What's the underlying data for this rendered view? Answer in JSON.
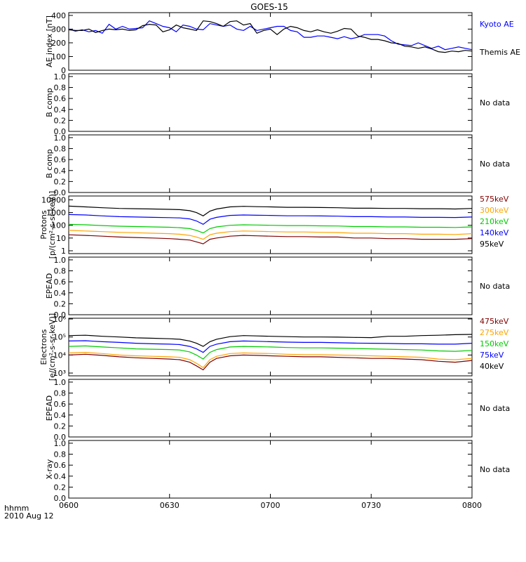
{
  "title": "GOES-15",
  "x_axis": {
    "ticks": [
      "0600",
      "0630",
      "0700",
      "0730",
      "0800"
    ],
    "label": "hhmm",
    "date": "2010 Aug 12",
    "range": [
      0,
      120
    ]
  },
  "colors": {
    "black": "#000000",
    "blue": "#0000ff",
    "green": "#00cc00",
    "orange": "#ffa500",
    "darkred": "#800000"
  },
  "chart_data": [
    {
      "type": "line",
      "ylabel": "AE index [nT]",
      "yticks": [
        "0",
        "100",
        "200",
        "300",
        "400"
      ],
      "ylim": [
        0,
        420
      ],
      "x": [
        0,
        2,
        4,
        6,
        8,
        10,
        12,
        14,
        16,
        18,
        20,
        22,
        24,
        26,
        28,
        30,
        32,
        34,
        36,
        38,
        40,
        42,
        44,
        46,
        48,
        50,
        52,
        54,
        56,
        58,
        60,
        62,
        64,
        66,
        68,
        70,
        72,
        74,
        76,
        78,
        80,
        82,
        84,
        86,
        88,
        90,
        92,
        94,
        96,
        98,
        100,
        102,
        104,
        106,
        108,
        110,
        112,
        114,
        116,
        118,
        120
      ],
      "series": [
        {
          "name": "Kyoto AE",
          "color": "blue",
          "values": [
            300,
            285,
            295,
            280,
            290,
            270,
            335,
            300,
            320,
            300,
            305,
            310,
            360,
            340,
            320,
            310,
            280,
            330,
            320,
            300,
            295,
            340,
            330,
            320,
            330,
            300,
            290,
            320,
            290,
            300,
            310,
            320,
            320,
            290,
            280,
            240,
            240,
            250,
            250,
            240,
            230,
            245,
            230,
            240,
            260,
            260,
            260,
            250,
            215,
            190,
            185,
            180,
            200,
            180,
            160,
            175,
            150,
            160,
            170,
            160,
            150
          ]
        },
        {
          "name": "Themis AE",
          "color": "black",
          "values": [
            295,
            290,
            290,
            300,
            275,
            290,
            300,
            295,
            300,
            290,
            295,
            325,
            335,
            330,
            280,
            295,
            330,
            310,
            300,
            290,
            360,
            355,
            340,
            320,
            355,
            360,
            330,
            340,
            270,
            290,
            300,
            260,
            300,
            320,
            310,
            290,
            280,
            295,
            280,
            270,
            285,
            305,
            300,
            250,
            240,
            225,
            225,
            215,
            200,
            195,
            175,
            170,
            160,
            170,
            155,
            135,
            130,
            140,
            135,
            145,
            140
          ]
        }
      ]
    },
    {
      "type": "line",
      "ylabel": "B comp",
      "yticks": [
        "0.0",
        "0.2",
        "0.4",
        "0.6",
        "0.8",
        "1.0"
      ],
      "ylim": [
        0,
        1.05
      ],
      "note": "No data"
    },
    {
      "type": "line",
      "ylabel": "B comp",
      "yticks": [
        "0.0",
        "0.2",
        "0.4",
        "0.6",
        "0.8",
        "1.0"
      ],
      "ylim": [
        0,
        1.05
      ],
      "note": "No data"
    },
    {
      "type": "line",
      "scale": "log",
      "ylabel": "Protons",
      "ylabel2": "[p/(cm²-s-sr-keV)]",
      "yticks": [
        "1",
        "10",
        "100",
        "1000",
        "10000"
      ],
      "ylim": [
        0.6,
        20000
      ],
      "x": [
        0,
        5,
        10,
        15,
        20,
        25,
        30,
        33,
        36,
        38,
        40,
        42,
        44,
        48,
        52,
        56,
        60,
        65,
        70,
        75,
        80,
        85,
        90,
        95,
        100,
        105,
        110,
        115,
        120
      ],
      "series": [
        {
          "name": "575keV",
          "color": "darkred",
          "values": [
            18,
            16,
            14,
            12,
            11,
            10,
            9,
            8,
            7,
            5,
            3.5,
            8,
            10,
            14,
            16,
            15,
            14,
            13,
            13,
            12,
            12,
            10,
            10,
            9,
            9,
            8,
            8,
            8,
            9
          ]
        },
        {
          "name": "300keV",
          "color": "orange",
          "values": [
            40,
            36,
            32,
            28,
            26,
            24,
            22,
            20,
            16,
            12,
            8,
            18,
            24,
            32,
            36,
            34,
            32,
            30,
            30,
            28,
            27,
            24,
            24,
            22,
            22,
            20,
            20,
            19,
            22
          ]
        },
        {
          "name": "210keV",
          "color": "green",
          "values": [
            120,
            110,
            95,
            85,
            80,
            75,
            70,
            65,
            55,
            40,
            25,
            55,
            75,
            100,
            110,
            105,
            100,
            95,
            95,
            90,
            88,
            80,
            80,
            75,
            75,
            70,
            70,
            68,
            75
          ]
        },
        {
          "name": "140keV",
          "color": "blue",
          "values": [
            700,
            650,
            550,
            480,
            450,
            420,
            400,
            380,
            320,
            220,
            120,
            300,
            420,
            600,
            650,
            620,
            600,
            560,
            560,
            540,
            520,
            480,
            480,
            450,
            450,
            420,
            420,
            410,
            450
          ]
        },
        {
          "name": "95keV",
          "color": "black",
          "values": [
            3200,
            2800,
            2400,
            2100,
            2000,
            1900,
            1800,
            1700,
            1400,
            1000,
            550,
            1300,
            1900,
            2800,
            3100,
            2900,
            2800,
            2600,
            2600,
            2500,
            2400,
            2200,
            2200,
            2100,
            2100,
            2000,
            2000,
            1900,
            2100
          ]
        }
      ]
    },
    {
      "type": "line",
      "ylabel": "EPEAD",
      "yticks": [
        "0.0",
        "0.2",
        "0.4",
        "0.6",
        "0.8",
        "1.0"
      ],
      "ylim": [
        0,
        1.05
      ],
      "note": "No data"
    },
    {
      "type": "line",
      "scale": "log",
      "ylabel": "Electrons",
      "ylabel2": "[e/(cm²-s-sr-keV)]",
      "yticks": [
        "10³",
        "10⁴",
        "10⁵",
        "10⁶"
      ],
      "ylim": [
        700,
        1100000
      ],
      "x": [
        0,
        5,
        10,
        15,
        20,
        25,
        30,
        33,
        36,
        38,
        40,
        42,
        44,
        48,
        52,
        56,
        60,
        65,
        70,
        75,
        80,
        85,
        90,
        95,
        100,
        105,
        110,
        115,
        120
      ],
      "series": [
        {
          "name": "475keV",
          "color": "darkred",
          "values": [
            10000,
            11000,
            9500,
            8000,
            7000,
            6500,
            6000,
            5500,
            4000,
            2500,
            1500,
            4000,
            6500,
            9000,
            10000,
            9500,
            9000,
            8500,
            8000,
            8000,
            7500,
            7000,
            6500,
            6500,
            6000,
            5500,
            4500,
            4000,
            5000
          ]
        },
        {
          "name": "275keV",
          "color": "orange",
          "values": [
            13000,
            14000,
            12000,
            10000,
            9000,
            8500,
            8000,
            7500,
            5500,
            3500,
            2000,
            5500,
            8500,
            12000,
            13000,
            12500,
            12000,
            11000,
            10500,
            10500,
            10000,
            9500,
            9000,
            8500,
            8000,
            7500,
            6000,
            5500,
            6500
          ]
        },
        {
          "name": "150keV",
          "color": "green",
          "values": [
            30000,
            32000,
            28000,
            25000,
            22000,
            21000,
            20000,
            19000,
            15000,
            10000,
            6000,
            14000,
            20000,
            28000,
            30000,
            29000,
            28000,
            26000,
            25000,
            25000,
            24000,
            23000,
            22000,
            21000,
            20000,
            19000,
            17000,
            16000,
            18000
          ]
        },
        {
          "name": "75keV",
          "color": "blue",
          "values": [
            60000,
            62000,
            55000,
            50000,
            45000,
            42000,
            40000,
            38000,
            30000,
            22000,
            14000,
            30000,
            40000,
            55000,
            60000,
            58000,
            55000,
            52000,
            50000,
            50000,
            48000,
            46000,
            45000,
            44000,
            42000,
            42000,
            40000,
            40000,
            45000
          ]
        },
        {
          "name": "40keV",
          "color": "black",
          "values": [
            120000,
            125000,
            110000,
            100000,
            90000,
            85000,
            80000,
            75000,
            60000,
            45000,
            30000,
            55000,
            75000,
            105000,
            120000,
            115000,
            110000,
            105000,
            100000,
            100000,
            98000,
            95000,
            92000,
            110000,
            110000,
            120000,
            125000,
            135000,
            140000
          ]
        }
      ]
    },
    {
      "type": "line",
      "ylabel": "EPEAD",
      "yticks": [
        "0.0",
        "0.2",
        "0.4",
        "0.6",
        "0.8",
        "1.0"
      ],
      "ylim": [
        0,
        1.05
      ],
      "note": "No data"
    },
    {
      "type": "line",
      "ylabel": "X-ray",
      "yticks": [
        "0.0",
        "0.2",
        "0.4",
        "0.6",
        "0.8",
        "1.0"
      ],
      "ylim": [
        0,
        1.05
      ],
      "note": "No data"
    }
  ]
}
